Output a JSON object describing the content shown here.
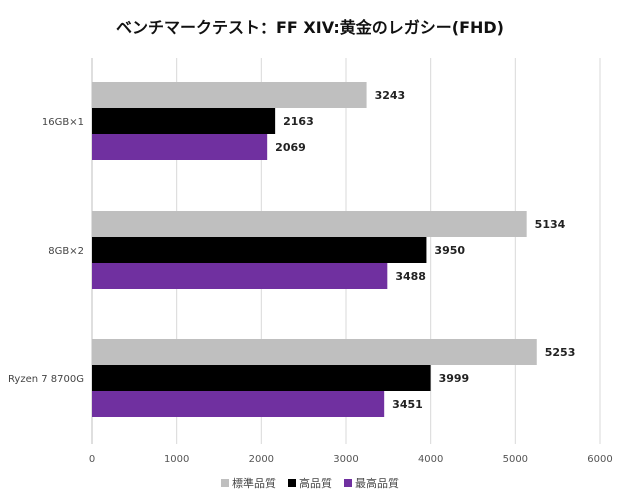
{
  "chart_data": {
    "type": "bar",
    "orientation": "horizontal",
    "title": "ベンチマークテスト：FF XIV:黄金のレガシー(FHD)",
    "categories": [
      "16GB×1",
      "8GB×2",
      "Ryzen 7 8700G"
    ],
    "series": [
      {
        "name": "標準品質",
        "color": "#bfbfbf",
        "values": [
          3243,
          5134,
          5253
        ]
      },
      {
        "name": "高品質",
        "color": "#000000",
        "values": [
          2163,
          3950,
          3999
        ]
      },
      {
        "name": "最高品質",
        "color": "#7030a0",
        "values": [
          2069,
          3488,
          3451
        ]
      }
    ],
    "xlim": [
      0,
      6000
    ],
    "xticks": [
      0,
      1000,
      2000,
      3000,
      4000,
      5000,
      6000
    ],
    "grid": true,
    "legend": "bottom"
  }
}
